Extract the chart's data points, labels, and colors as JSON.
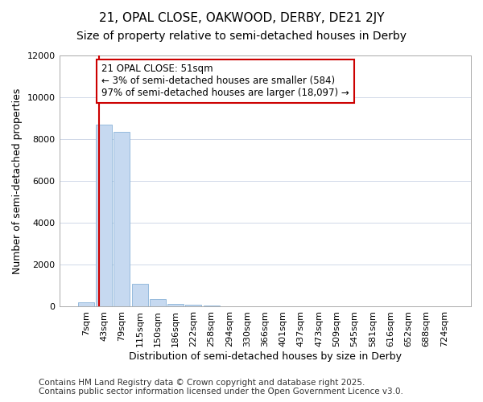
{
  "title": "21, OPAL CLOSE, OAKWOOD, DERBY, DE21 2JY",
  "subtitle": "Size of property relative to semi-detached houses in Derby",
  "xlabel": "Distribution of semi-detached houses by size in Derby",
  "ylabel": "Number of semi-detached properties",
  "bin_labels": [
    "7sqm",
    "43sqm",
    "79sqm",
    "115sqm",
    "150sqm",
    "186sqm",
    "222sqm",
    "258sqm",
    "294sqm",
    "330sqm",
    "366sqm",
    "401sqm",
    "437sqm",
    "473sqm",
    "509sqm",
    "545sqm",
    "581sqm",
    "616sqm",
    "652sqm",
    "688sqm",
    "724sqm"
  ],
  "bar_values": [
    200,
    8700,
    8350,
    1100,
    350,
    150,
    100,
    60,
    0,
    0,
    0,
    0,
    0,
    0,
    0,
    0,
    0,
    0,
    0,
    0,
    0
  ],
  "bar_color": "#c6d9f0",
  "bar_edge_color": "#8ab4d8",
  "ylim": [
    0,
    12000
  ],
  "yticks": [
    0,
    2000,
    4000,
    6000,
    8000,
    10000,
    12000
  ],
  "red_line_x": 0.68,
  "red_line_color": "#cc0000",
  "annotation_text": "21 OPAL CLOSE: 51sqm\n← 3% of semi-detached houses are smaller (584)\n97% of semi-detached houses are larger (18,097) →",
  "annotation_box_color": "#ffffff",
  "annotation_box_edge": "#cc0000",
  "footer_text": "Contains HM Land Registry data © Crown copyright and database right 2025.\nContains public sector information licensed under the Open Government Licence v3.0.",
  "background_color": "#ffffff",
  "grid_color": "#d0d8e8",
  "title_fontsize": 11,
  "subtitle_fontsize": 10,
  "axis_label_fontsize": 9,
  "tick_fontsize": 8,
  "annotation_fontsize": 8.5,
  "footer_fontsize": 7.5
}
